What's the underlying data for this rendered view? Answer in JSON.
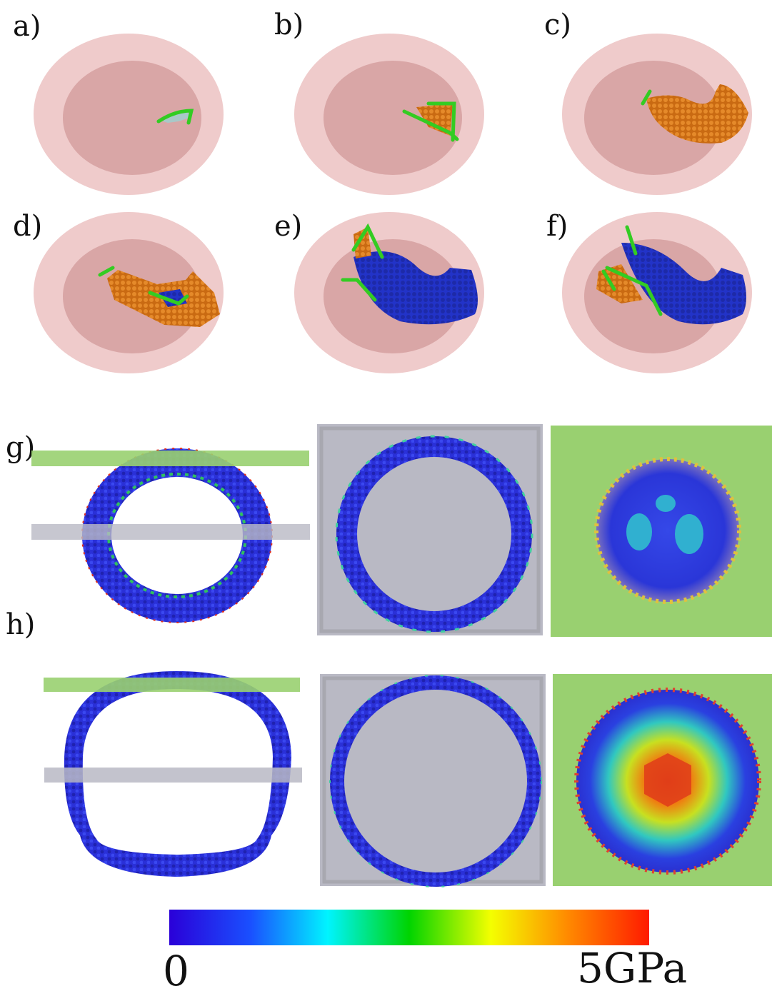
{
  "panels": [
    {
      "id": "a",
      "label": "a)"
    },
    {
      "id": "b",
      "label": "b)"
    },
    {
      "id": "c",
      "label": "c)"
    },
    {
      "id": "d",
      "label": "d)"
    },
    {
      "id": "e",
      "label": "e)"
    },
    {
      "id": "f",
      "label": "f)"
    },
    {
      "id": "g",
      "label": "g)"
    },
    {
      "id": "h",
      "label": "h)"
    }
  ],
  "colorbar": {
    "min_label": "0",
    "max_label": "5GPa",
    "stops": [
      "#2a00d8",
      "#1a50ff",
      "#00f4ff",
      "#00d400",
      "#f4ff00",
      "#ff8a00",
      "#ff1a00"
    ]
  },
  "colors": {
    "shell_outer": "#efcbcb",
    "shell_inner": "#d9a6a6",
    "orange_atoms": "#d7781e",
    "blue_atoms": "#1f2fb5",
    "green_dislocation": "#33cc22",
    "indenter_green": "#99d070",
    "indenter_gray": "#b9b9c4"
  }
}
